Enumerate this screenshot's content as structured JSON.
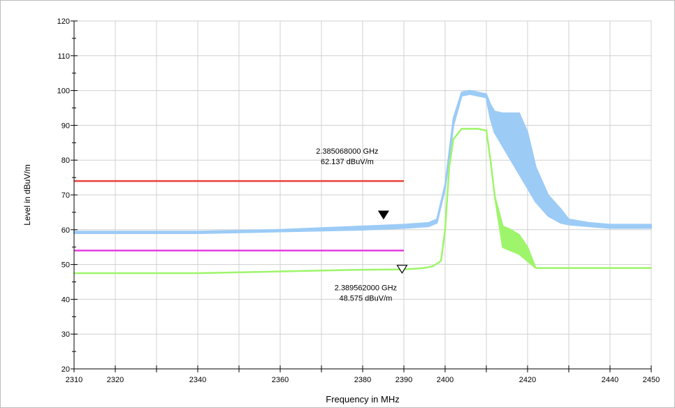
{
  "chart_data": {
    "type": "line",
    "xlabel": "Frequency in MHz",
    "ylabel": "Level in dBuV/m",
    "xlim": [
      2310,
      2450
    ],
    "ylim": [
      20,
      120
    ],
    "x_ticks": [
      "2310",
      "2320",
      "2340",
      "2360",
      "2380",
      "2390",
      "2400",
      "2420",
      "2440",
      "2450"
    ],
    "y_ticks": [
      "20",
      "30",
      "40",
      "50",
      "60",
      "70",
      "80",
      "90",
      "100",
      "110",
      "120"
    ],
    "grid": true,
    "limit_lines": [
      {
        "color": "#e8403a",
        "y": 74,
        "x": [
          2310,
          2390
        ]
      },
      {
        "color": "#e63cdc",
        "y": 54,
        "x": [
          2310,
          2390
        ]
      }
    ],
    "series": [
      {
        "color": "#9ccbf6",
        "x": [
          2310,
          2320,
          2340,
          2360,
          2380,
          2390,
          2396,
          2398,
          2400,
          2402,
          2404,
          2406,
          2408,
          2410,
          2411,
          2412,
          2414,
          2416,
          2418,
          2420,
          2422,
          2425,
          2428,
          2430,
          2435,
          2440,
          2445,
          2450
        ],
        "values": [
          59,
          59,
          59,
          59.5,
          60,
          60.5,
          61,
          62,
          72,
          90,
          98.5,
          99,
          98.5,
          98,
          92,
          88,
          84,
          80,
          76,
          72,
          68,
          64,
          62,
          61.5,
          61,
          60.5,
          60.5,
          60.5
        ],
        "upper": [
          59.5,
          59.5,
          59.5,
          60,
          61,
          61.5,
          62,
          63,
          73,
          92,
          99.5,
          100,
          99.5,
          99,
          96,
          94,
          93.5,
          93.5,
          93.5,
          88,
          78,
          70,
          66,
          63,
          62,
          61.5,
          61.5,
          61.5
        ]
      },
      {
        "color": "#9ef56b",
        "x": [
          2310,
          2320,
          2340,
          2360,
          2380,
          2390,
          2395,
          2397,
          2399,
          2400,
          2401,
          2402,
          2404,
          2406,
          2408,
          2410,
          2411,
          2412,
          2414,
          2416,
          2418,
          2420,
          2421,
          2422,
          2425,
          2430,
          2440,
          2450
        ],
        "values": [
          47.5,
          47.5,
          47.5,
          48,
          48.5,
          48.6,
          49,
          49.5,
          51,
          60,
          78,
          86,
          89,
          89,
          89,
          88.5,
          80,
          70,
          55,
          54,
          53,
          51,
          50,
          49,
          49,
          49,
          49,
          49
        ],
        "upper": [
          47.5,
          47.5,
          47.5,
          48,
          48.5,
          48.6,
          49,
          49.5,
          51,
          60,
          78,
          86,
          89,
          89,
          89,
          88.5,
          80,
          70,
          61,
          60,
          58.5,
          55,
          52,
          49,
          49,
          49,
          49,
          49
        ]
      }
    ],
    "markers": [
      {
        "x": 2385.068,
        "y": 62.137,
        "filled": true,
        "label1": "2.385068000 GHz",
        "label2": "62.137 dBuV/m"
      },
      {
        "x": 2389.562,
        "y": 48.575,
        "filled": false,
        "label1": "2.389562000 GHz",
        "label2": "48.575 dBuV/m"
      }
    ]
  }
}
